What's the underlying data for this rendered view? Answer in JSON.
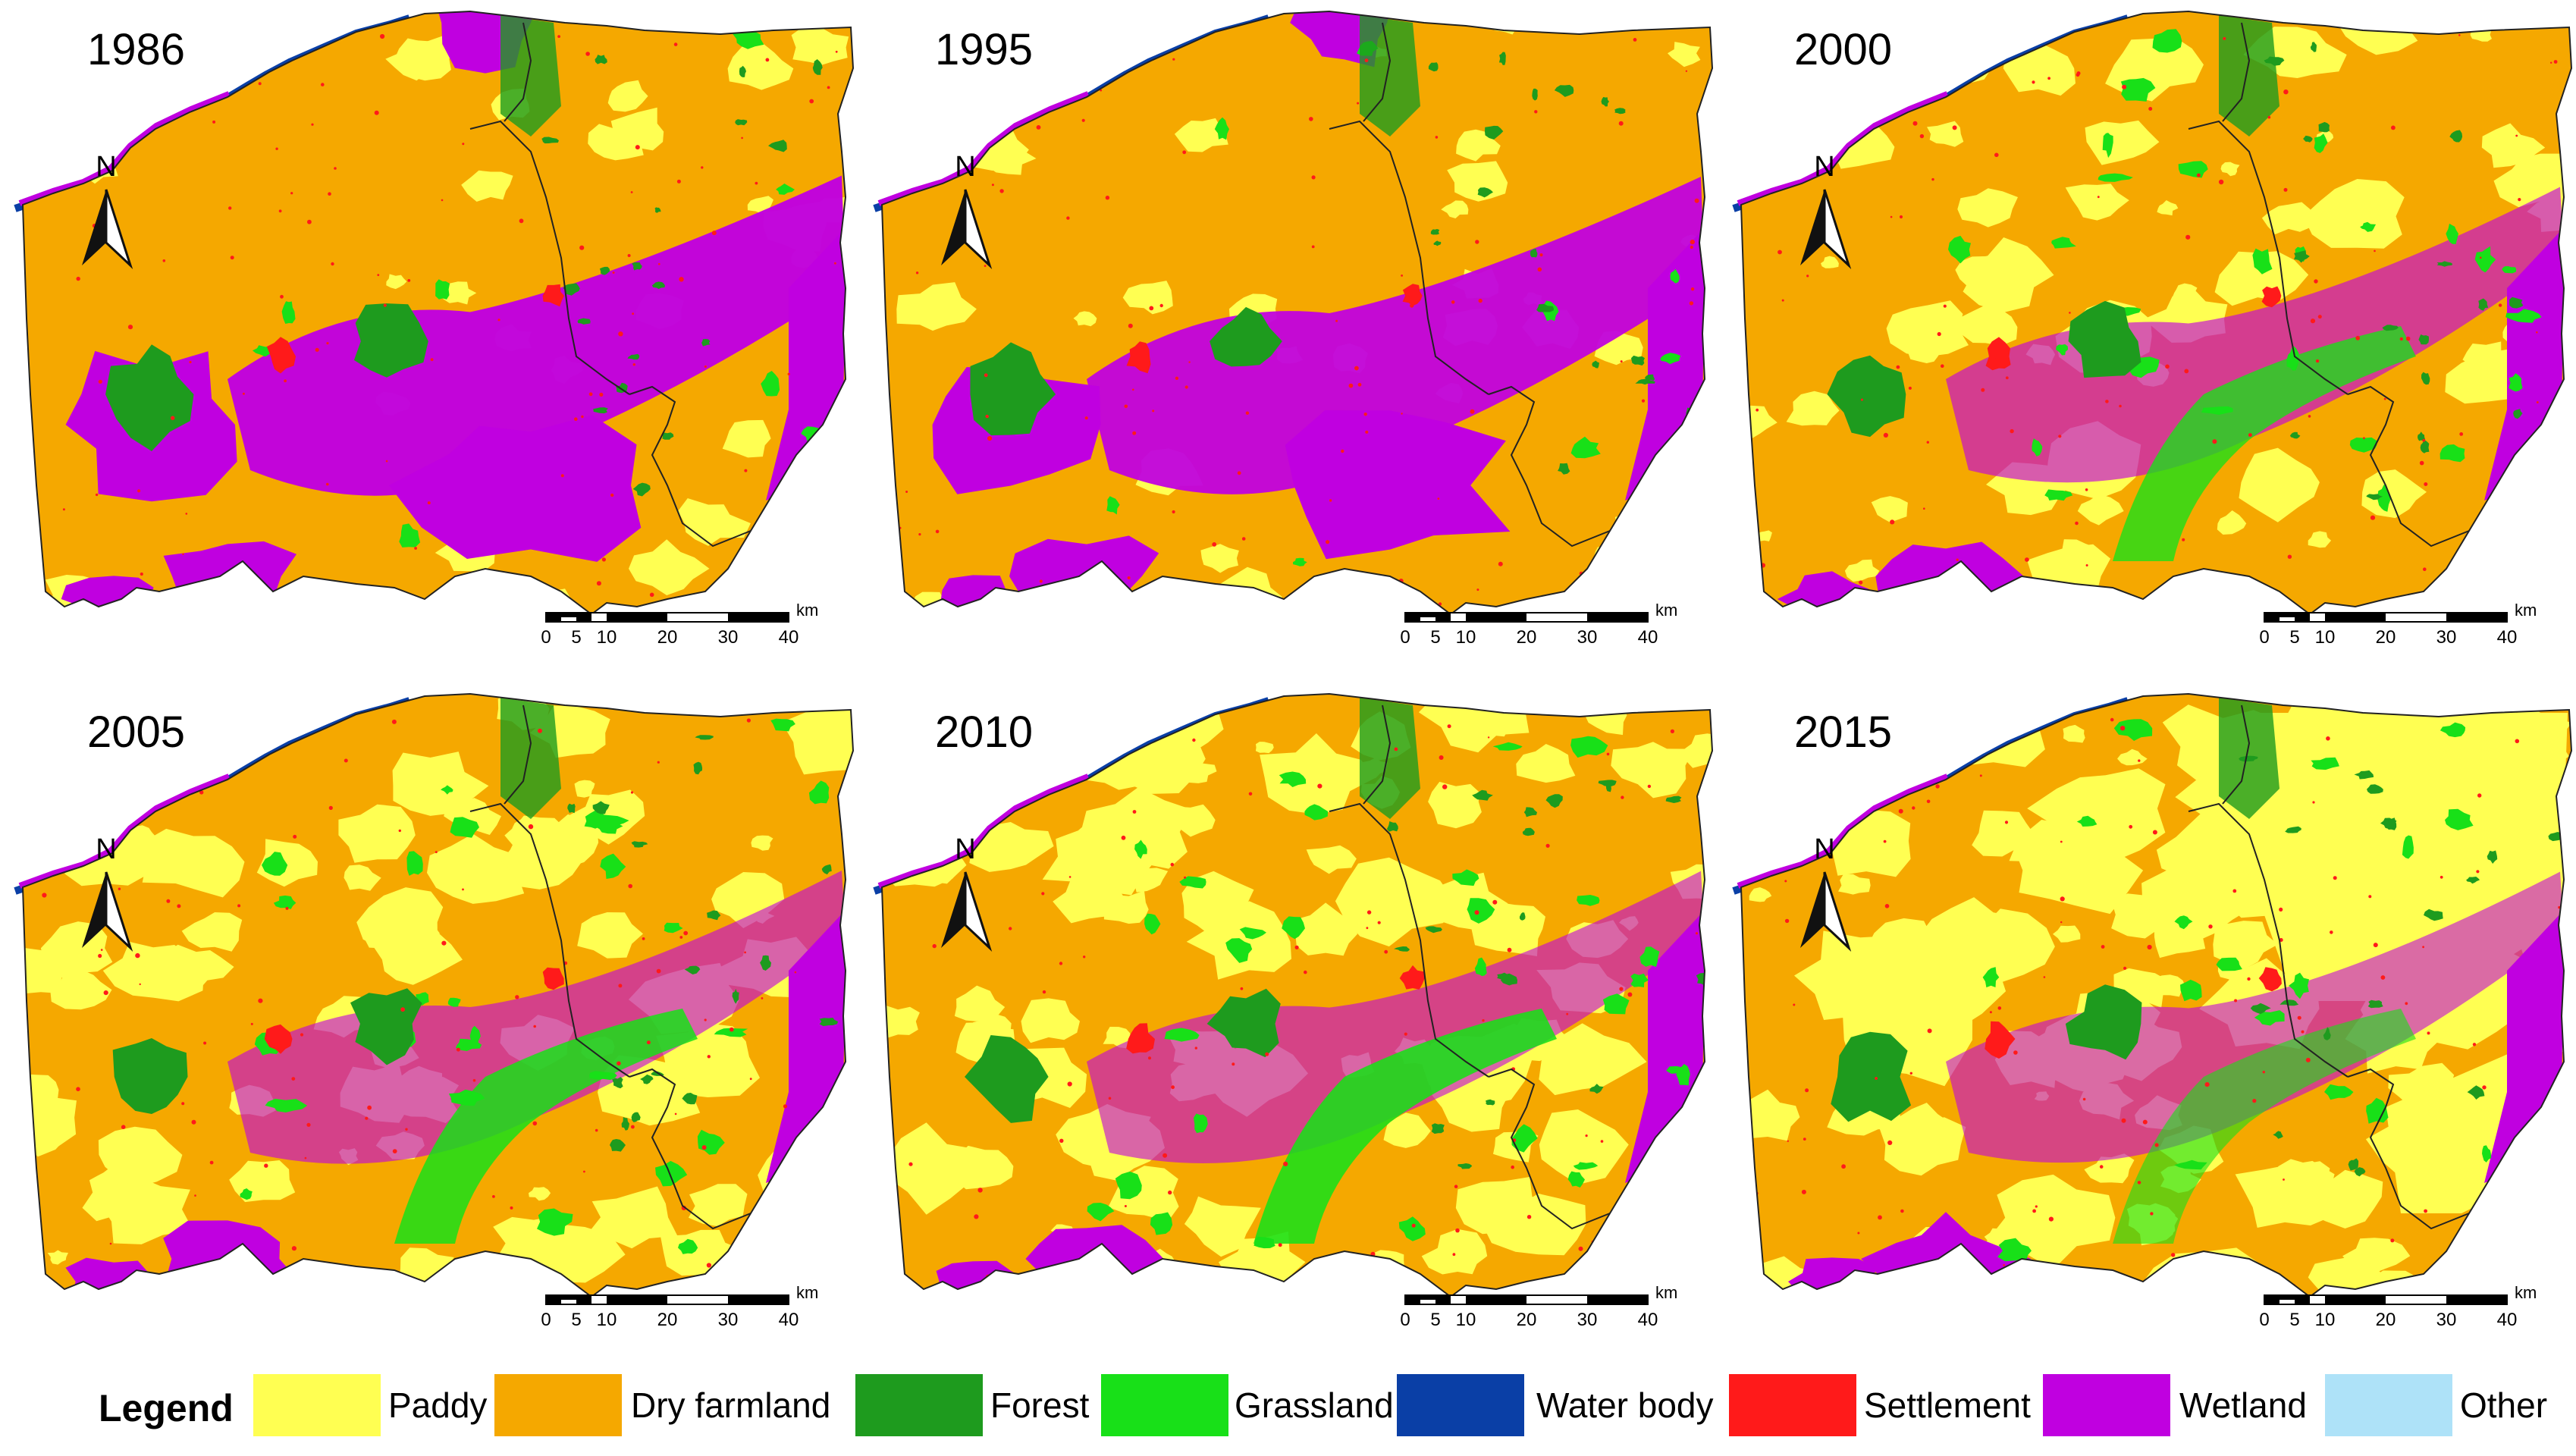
{
  "panels": [
    {
      "year": "1986"
    },
    {
      "year": "1995"
    },
    {
      "year": "2000"
    },
    {
      "year": "2005"
    },
    {
      "year": "2010"
    },
    {
      "year": "2015"
    }
  ],
  "north_label": "N",
  "scale": {
    "unit": "km",
    "ticks": [
      "0",
      "5",
      "10",
      "20",
      "30",
      "40"
    ]
  },
  "legend": {
    "title": "Legend",
    "items": [
      {
        "label": "Paddy",
        "color": "#ffff52"
      },
      {
        "label": "Dry farmland",
        "color": "#f5a800"
      },
      {
        "label": "Forest",
        "color": "#1e9b1e"
      },
      {
        "label": "Grassland",
        "color": "#18e018"
      },
      {
        "label": "Water body",
        "color": "#0a3fa6"
      },
      {
        "label": "Settlement",
        "color": "#ff1a1a"
      },
      {
        "label": "Wetland",
        "color": "#c000e0"
      },
      {
        "label": "Other",
        "color": "#aee2f8"
      }
    ]
  },
  "colors": {
    "paddy": "#ffff52",
    "dry": "#f5a800",
    "forest": "#1e9b1e",
    "grass": "#18e018",
    "water": "#0a3fa6",
    "settle": "#ff1a1a",
    "wetland": "#c000e0"
  },
  "land_cover_level": {
    "paddy": [
      0.1,
      0.12,
      0.35,
      0.45,
      0.5,
      0.75
    ],
    "wetland": [
      0.95,
      0.9,
      0.45,
      0.4,
      0.38,
      0.35
    ],
    "grass": [
      0.05,
      0.05,
      0.65,
      0.75,
      0.8,
      0.35
    ]
  }
}
